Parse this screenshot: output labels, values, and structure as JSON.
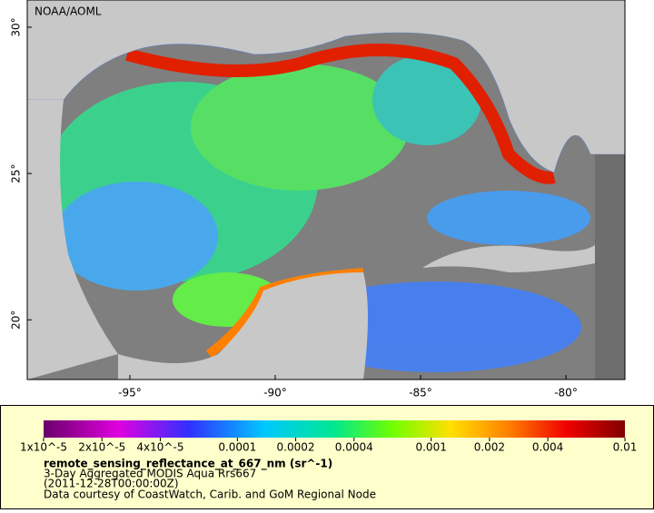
{
  "map": {
    "title": "NOAA/AOML",
    "xlim": [
      -98.53,
      -77.97
    ],
    "ylim": [
      17.96,
      30.93
    ],
    "xticks": [
      {
        "value": -95,
        "label": "-95°"
      },
      {
        "value": -90,
        "label": "-90°"
      },
      {
        "value": -85,
        "label": "-85°"
      },
      {
        "value": -80,
        "label": "-80°"
      }
    ],
    "yticks": [
      {
        "value": 20,
        "label": "20°"
      },
      {
        "value": 25,
        "label": "25°"
      },
      {
        "value": 30,
        "label": "30°"
      }
    ]
  },
  "colorbar": {
    "lim": [
      1e-05,
      0.01
    ],
    "log": true,
    "ticks": [
      {
        "value": 1e-05,
        "label": "1x10^-5"
      },
      {
        "value": 2e-05,
        "label": "2x10^-5"
      },
      {
        "value": 4e-05,
        "label": "4x10^-5"
      },
      0.0001,
      0.0002,
      0.0004,
      0.001,
      0.002,
      0.004,
      0.01
    ]
  },
  "caption": {
    "variable": "remote_sensing_reflectance_at_667_nm (sr^-1)",
    "description": "3-Day Aggregated MODIS Aqua Rrs667",
    "date": "(2011-12-28T00:00:00Z)",
    "credit": "Data courtesy of CoastWatch, Carib. and GoM Regional Node"
  }
}
